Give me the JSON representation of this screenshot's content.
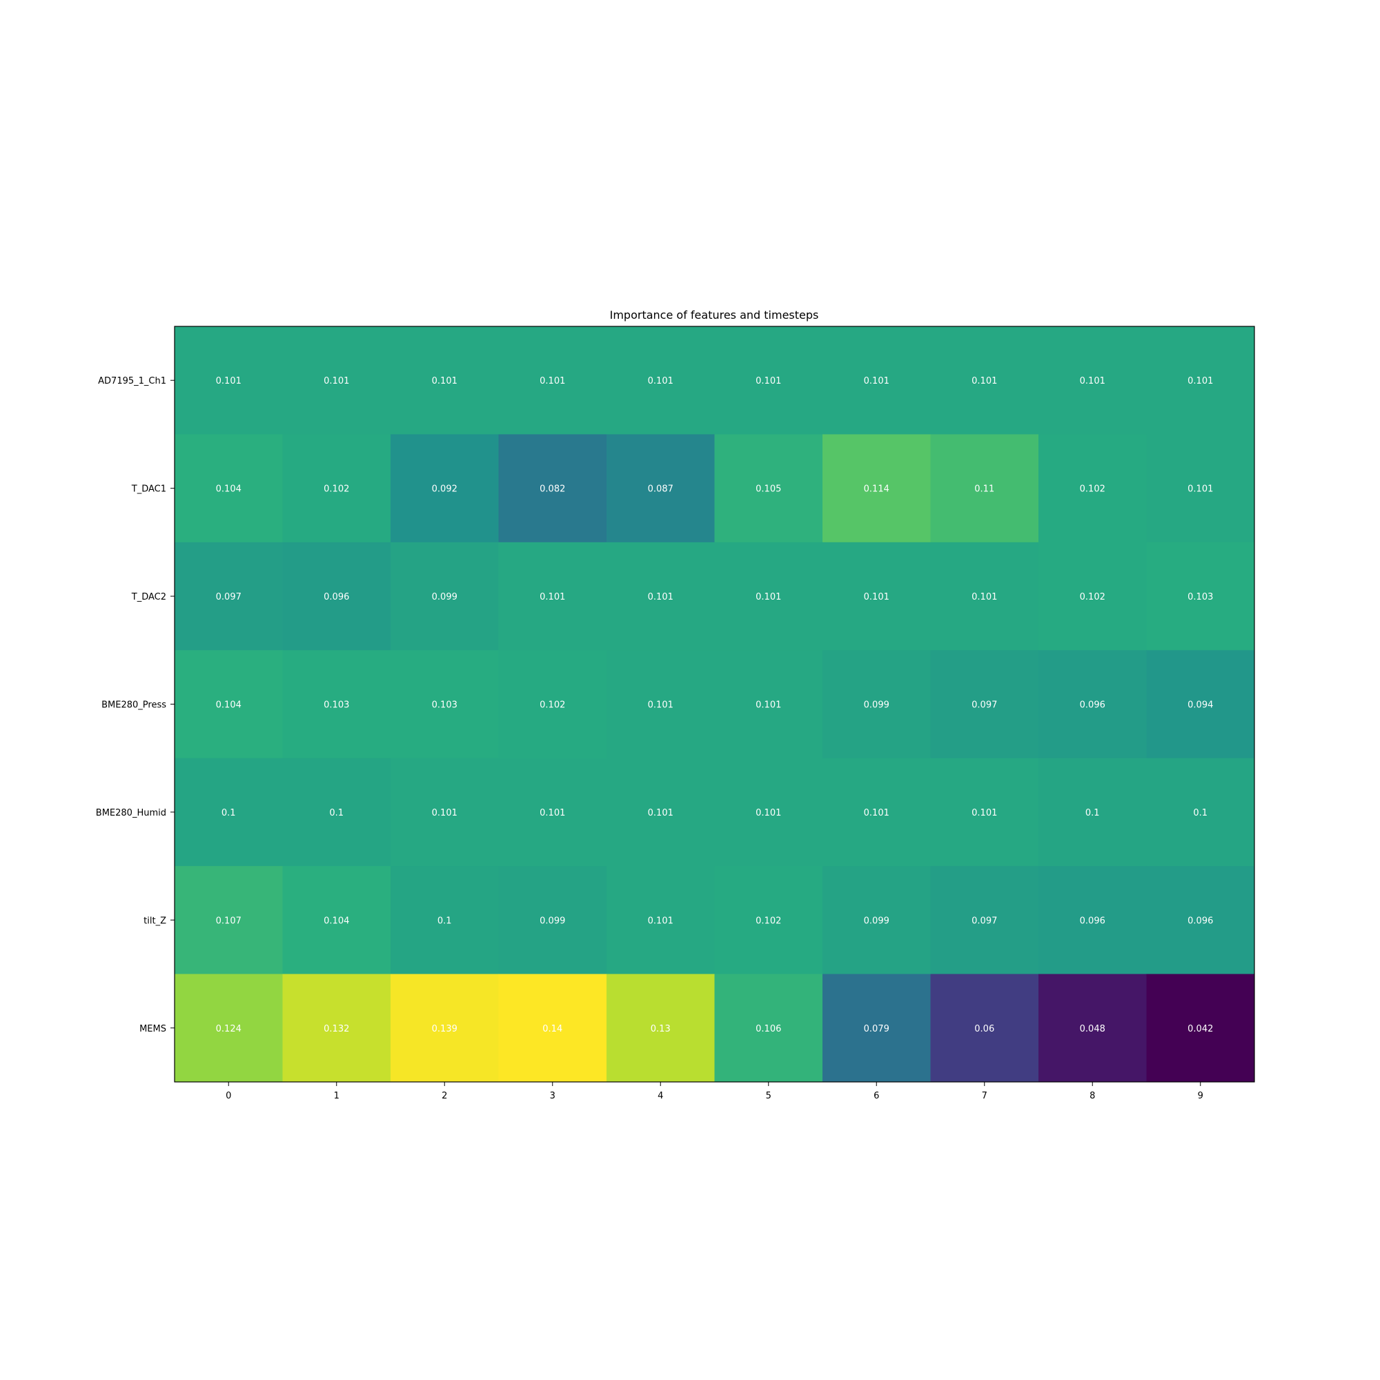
{
  "chart_data": {
    "type": "heatmap",
    "title": "Importance of features and timesteps",
    "xlabel": "",
    "ylabel": "",
    "x_categories": [
      "0",
      "1",
      "2",
      "3",
      "4",
      "5",
      "6",
      "7",
      "8",
      "9"
    ],
    "y_categories": [
      "AD7195_1_Ch1",
      "T_DAC1",
      "T_DAC2",
      "BME280_Press",
      "BME280_Humid",
      "tilt_Z",
      "MEMS"
    ],
    "values": [
      [
        0.101,
        0.101,
        0.101,
        0.101,
        0.101,
        0.101,
        0.101,
        0.101,
        0.101,
        0.101
      ],
      [
        0.104,
        0.102,
        0.092,
        0.082,
        0.087,
        0.105,
        0.114,
        0.11,
        0.102,
        0.101
      ],
      [
        0.097,
        0.096,
        0.099,
        0.101,
        0.101,
        0.101,
        0.101,
        0.101,
        0.102,
        0.103
      ],
      [
        0.104,
        0.103,
        0.103,
        0.102,
        0.101,
        0.101,
        0.099,
        0.097,
        0.096,
        0.094
      ],
      [
        0.1,
        0.1,
        0.101,
        0.101,
        0.101,
        0.101,
        0.101,
        0.101,
        0.1,
        0.1
      ],
      [
        0.107,
        0.104,
        0.1,
        0.099,
        0.101,
        0.102,
        0.099,
        0.097,
        0.096,
        0.096
      ],
      [
        0.124,
        0.132,
        0.139,
        0.14,
        0.13,
        0.106,
        0.079,
        0.06,
        0.048,
        0.042
      ]
    ],
    "colormap": "viridis",
    "value_labels_color": "#ffffff",
    "grid": false,
    "colorbar": false
  }
}
